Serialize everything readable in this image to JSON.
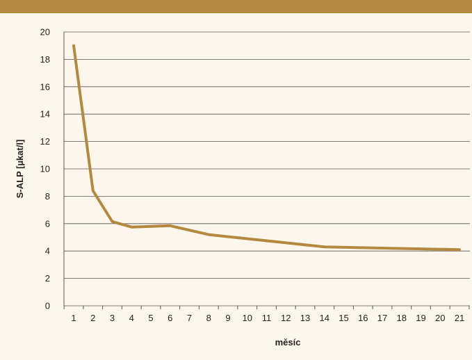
{
  "colors": {
    "background": "#fdf6ec",
    "header": "#b5883f",
    "line": "#b5883f",
    "grid": "#555555"
  },
  "chart_data": {
    "type": "line",
    "xlabel": "měsíc",
    "ylabel": "S-ALP [µkat/l]",
    "categories": [
      "1",
      "2",
      "3",
      "4",
      "5",
      "6",
      "7",
      "8",
      "9",
      "10",
      "11",
      "12",
      "13",
      "14",
      "15",
      "16",
      "17",
      "18",
      "19",
      "20",
      "21"
    ],
    "series": [
      {
        "x": [
          1,
          2,
          3,
          4,
          6,
          8,
          10,
          12,
          14,
          21
        ],
        "values": [
          19.0,
          8.4,
          6.15,
          5.75,
          5.85,
          5.2,
          4.9,
          4.6,
          4.3,
          4.1
        ]
      }
    ],
    "ylim": [
      0,
      20
    ],
    "yticks": [
      0,
      2,
      4,
      6,
      8,
      10,
      12,
      14,
      16,
      18,
      20
    ],
    "grid": "horizontal",
    "legend": "none"
  }
}
